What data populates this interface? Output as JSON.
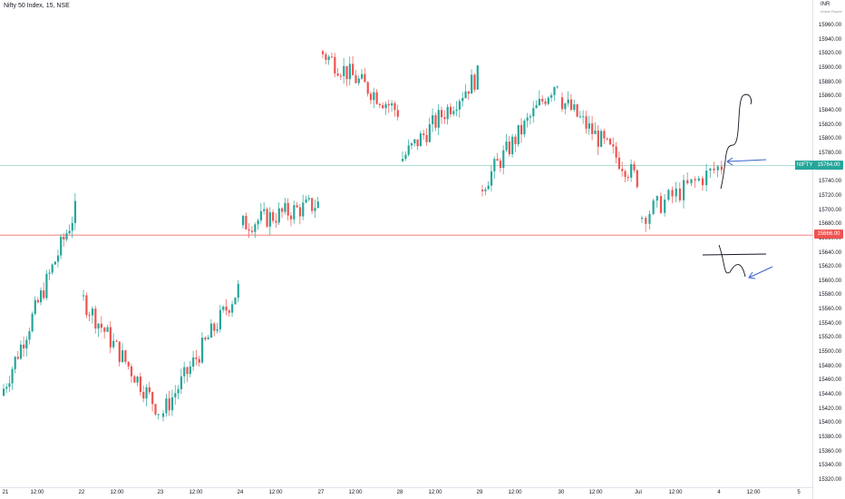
{
  "chart": {
    "title": "Nifty 50 Index, 15, NSE",
    "currency": "INR",
    "currency_sub": "Indian Rupee",
    "symbol_tag": "NIFTY",
    "last_value": "15764.00",
    "level_value": "15666.00",
    "colors": {
      "up": "#26a69a",
      "down": "#ef5350",
      "annotation_arrow": "#3962d0",
      "annotation_path": "#131722",
      "current_line": "#a3d9cf"
    },
    "price_ticks": [
      "15960.00",
      "15940.00",
      "15920.00",
      "15900.00",
      "15880.00",
      "15860.00",
      "15840.00",
      "15820.00",
      "15800.00",
      "15780.00",
      "15760.00",
      "15740.00",
      "15720.00",
      "15700.00",
      "15680.00",
      "15660.00",
      "15640.00",
      "15620.00",
      "15600.00",
      "15580.00",
      "15560.00",
      "15540.00",
      "15520.00",
      "15500.00",
      "15480.00",
      "15460.00",
      "15440.00",
      "15420.00",
      "15400.00",
      "15380.00",
      "15360.00",
      "15340.00",
      "15320.00"
    ],
    "time_ticks": [
      "21",
      "12:00",
      "22",
      "12:00",
      "23",
      "12:00",
      "24",
      "12:00",
      "27",
      "12:00",
      "28",
      "12:00",
      "29",
      "12:00",
      "30",
      "12:00",
      "Jul",
      "12:00",
      "4",
      "12:00",
      "5"
    ]
  },
  "chart_data": {
    "type": "candlestick",
    "title": "Nifty 50 Index, 15, NSE",
    "symbol": "NIFTY",
    "exchange": "NSE",
    "interval": "15",
    "currency": "INR",
    "ylim": [
      15310,
      15985
    ],
    "last_price": 15764.0,
    "horizontal_level": 15666.0,
    "x_ticks": [
      "21",
      "12:00",
      "22",
      "12:00",
      "23",
      "12:00",
      "24",
      "12:00",
      "27",
      "12:00",
      "28",
      "12:00",
      "29",
      "12:00",
      "30",
      "12:00",
      "Jul",
      "12:00",
      "4",
      "12:00",
      "5"
    ],
    "sessions": [
      {
        "day": "21",
        "start": 15440,
        "end": 15700
      },
      {
        "day": "22",
        "start": 15580,
        "end": 15420
      },
      {
        "day": "23",
        "start": 15410,
        "end": 15590
      },
      {
        "day": "24",
        "start": 15680,
        "end": 15710
      },
      {
        "day": "27",
        "start": 15925,
        "end": 15840
      },
      {
        "day": "28",
        "start": 15770,
        "end": 15890
      },
      {
        "day": "29",
        "start": 15730,
        "end": 15885
      },
      {
        "day": "30",
        "start": 15860,
        "end": 15745
      },
      {
        "day": "Jul",
        "start": 15690,
        "end": 15764
      }
    ],
    "grid": false
  }
}
